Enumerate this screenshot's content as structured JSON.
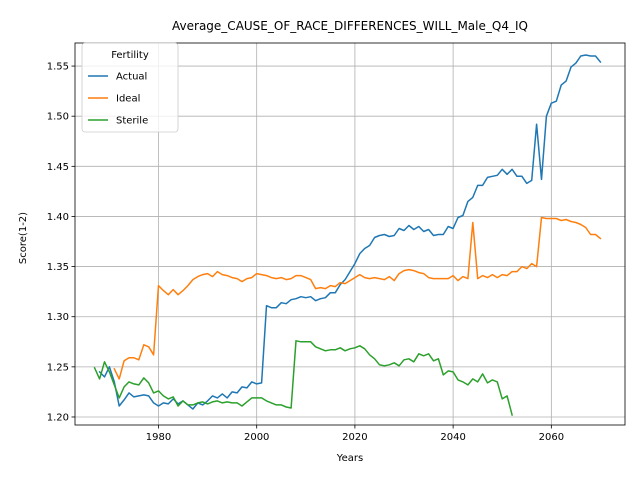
{
  "chart_data": {
    "type": "line",
    "title": "Average_CAUSE_OF_RACE_DIFFERENCES_WILL_Male_Q4_IQ",
    "xlabel": "Years",
    "ylabel": "Score(1-2)",
    "xlim": [
      1963,
      2075
    ],
    "ylim": [
      1.192,
      1.573
    ],
    "xticks": [
      1980,
      2000,
      2020,
      2040,
      2060
    ],
    "yticks": [
      1.2,
      1.25,
      1.3,
      1.35,
      1.4,
      1.45,
      1.5,
      1.55
    ],
    "grid": true,
    "legend": {
      "title": "Fertility",
      "placement": "upper-left"
    },
    "series": [
      {
        "name": "Actual",
        "color": "#1f77b4",
        "x": [
          1968,
          1969,
          1970,
          1971,
          1972,
          1973,
          1974,
          1975,
          1976,
          1977,
          1978,
          1979,
          1980,
          1981,
          1982,
          1983,
          1984,
          1985,
          1986,
          1987,
          1988,
          1989,
          1990,
          1991,
          1992,
          1993,
          1994,
          1995,
          1996,
          1997,
          1998,
          1999,
          2000,
          2001,
          2002,
          2003,
          2004,
          2005,
          2006,
          2007,
          2008,
          2009,
          2010,
          2011,
          2012,
          2013,
          2014,
          2015,
          2016,
          2017,
          2018,
          2019,
          2020,
          2021,
          2022,
          2023,
          2024,
          2025,
          2026,
          2027,
          2028,
          2029,
          2030,
          2031,
          2032,
          2033,
          2034,
          2035,
          2036,
          2037,
          2038,
          2039,
          2040,
          2041,
          2042,
          2043,
          2044,
          2045,
          2046,
          2047,
          2048,
          2049,
          2050,
          2051,
          2052,
          2053,
          2054,
          2055,
          2056,
          2057,
          2058,
          2059,
          2060,
          2061,
          2062,
          2063,
          2064,
          2065,
          2066,
          2067,
          2068,
          2069,
          2070
        ],
        "y": [
          1.245,
          1.24,
          1.25,
          1.235,
          1.211,
          1.217,
          1.224,
          1.22,
          1.221,
          1.222,
          1.221,
          1.214,
          1.211,
          1.214,
          1.213,
          1.218,
          1.213,
          1.216,
          1.212,
          1.208,
          1.214,
          1.212,
          1.216,
          1.221,
          1.219,
          1.223,
          1.219,
          1.225,
          1.224,
          1.23,
          1.229,
          1.235,
          1.233,
          1.234,
          1.311,
          1.309,
          1.309,
          1.314,
          1.313,
          1.317,
          1.318,
          1.32,
          1.319,
          1.32,
          1.316,
          1.318,
          1.319,
          1.324,
          1.324,
          1.332,
          1.337,
          1.345,
          1.353,
          1.363,
          1.368,
          1.371,
          1.379,
          1.381,
          1.382,
          1.38,
          1.381,
          1.388,
          1.386,
          1.391,
          1.387,
          1.39,
          1.385,
          1.387,
          1.381,
          1.382,
          1.382,
          1.39,
          1.388,
          1.399,
          1.401,
          1.415,
          1.419,
          1.431,
          1.431,
          1.439,
          1.44,
          1.441,
          1.447,
          1.442,
          1.447,
          1.44,
          1.44,
          1.433,
          1.436,
          1.492,
          1.437,
          1.5,
          1.513,
          1.515,
          1.531,
          1.535,
          1.549,
          1.553,
          1.56,
          1.561,
          1.56,
          1.56,
          1.554
        ]
      },
      {
        "name": "Ideal",
        "color": "#ff7f0e",
        "x": [
          1971,
          1972,
          1973,
          1974,
          1975,
          1976,
          1977,
          1978,
          1979,
          1980,
          1981,
          1982,
          1983,
          1984,
          1985,
          1986,
          1987,
          1988,
          1989,
          1990,
          1991,
          1992,
          1993,
          1994,
          1995,
          1996,
          1997,
          1998,
          1999,
          2000,
          2001,
          2002,
          2003,
          2004,
          2005,
          2006,
          2007,
          2008,
          2009,
          2010,
          2011,
          2012,
          2013,
          2014,
          2015,
          2016,
          2017,
          2018,
          2019,
          2020,
          2021,
          2022,
          2023,
          2024,
          2025,
          2026,
          2027,
          2028,
          2029,
          2030,
          2031,
          2032,
          2033,
          2034,
          2035,
          2036,
          2037,
          2038,
          2039,
          2040,
          2041,
          2042,
          2043,
          2044,
          2045,
          2046,
          2047,
          2048,
          2049,
          2050,
          2051,
          2052,
          2053,
          2054,
          2055,
          2056,
          2057,
          2058,
          2059,
          2060,
          2061,
          2062,
          2063,
          2064,
          2065,
          2066,
          2067,
          2068,
          2069,
          2070
        ],
        "y": [
          1.248,
          1.238,
          1.256,
          1.259,
          1.259,
          1.257,
          1.272,
          1.27,
          1.262,
          1.331,
          1.326,
          1.322,
          1.327,
          1.322,
          1.326,
          1.331,
          1.337,
          1.34,
          1.342,
          1.343,
          1.34,
          1.345,
          1.342,
          1.341,
          1.339,
          1.338,
          1.335,
          1.338,
          1.339,
          1.343,
          1.342,
          1.341,
          1.339,
          1.338,
          1.339,
          1.337,
          1.338,
          1.341,
          1.341,
          1.339,
          1.337,
          1.328,
          1.329,
          1.328,
          1.331,
          1.33,
          1.334,
          1.333,
          1.336,
          1.339,
          1.342,
          1.339,
          1.338,
          1.339,
          1.338,
          1.337,
          1.34,
          1.336,
          1.343,
          1.346,
          1.347,
          1.346,
          1.344,
          1.343,
          1.339,
          1.338,
          1.338,
          1.338,
          1.338,
          1.341,
          1.336,
          1.34,
          1.338,
          1.394,
          1.338,
          1.341,
          1.339,
          1.342,
          1.339,
          1.342,
          1.341,
          1.345,
          1.345,
          1.35,
          1.348,
          1.353,
          1.35,
          1.399,
          1.398,
          1.398,
          1.398,
          1.396,
          1.397,
          1.395,
          1.394,
          1.392,
          1.389,
          1.382,
          1.382,
          1.378
        ]
      },
      {
        "name": "Sterile",
        "color": "#2ca02c",
        "x": [
          1967,
          1968,
          1969,
          1970,
          1971,
          1972,
          1973,
          1974,
          1975,
          1976,
          1977,
          1978,
          1979,
          1980,
          1981,
          1982,
          1983,
          1984,
          1985,
          1986,
          1987,
          1988,
          1989,
          1990,
          1991,
          1992,
          1993,
          1994,
          1995,
          1996,
          1997,
          1998,
          1999,
          2000,
          2001,
          2002,
          2003,
          2004,
          2005,
          2006,
          2007,
          2008,
          2009,
          2010,
          2011,
          2012,
          2013,
          2014,
          2015,
          2016,
          2017,
          2018,
          2019,
          2020,
          2021,
          2022,
          2023,
          2024,
          2025,
          2026,
          2027,
          2028,
          2029,
          2030,
          2031,
          2032,
          2033,
          2034,
          2035,
          2036,
          2037,
          2038,
          2039,
          2040,
          2041,
          2042,
          2043,
          2044,
          2045,
          2046,
          2047,
          2048,
          2049,
          2050,
          2051,
          2052
        ],
        "y": [
          1.249,
          1.238,
          1.255,
          1.245,
          1.232,
          1.219,
          1.23,
          1.235,
          1.233,
          1.232,
          1.239,
          1.234,
          1.224,
          1.226,
          1.221,
          1.218,
          1.22,
          1.211,
          1.216,
          1.212,
          1.212,
          1.214,
          1.215,
          1.213,
          1.215,
          1.216,
          1.214,
          1.215,
          1.214,
          1.214,
          1.211,
          1.215,
          1.219,
          1.219,
          1.219,
          1.216,
          1.214,
          1.212,
          1.212,
          1.21,
          1.209,
          1.276,
          1.275,
          1.275,
          1.275,
          1.27,
          1.268,
          1.266,
          1.267,
          1.267,
          1.269,
          1.266,
          1.268,
          1.269,
          1.271,
          1.268,
          1.262,
          1.258,
          1.252,
          1.251,
          1.252,
          1.254,
          1.251,
          1.257,
          1.258,
          1.255,
          1.263,
          1.261,
          1.263,
          1.256,
          1.258,
          1.242,
          1.246,
          1.245,
          1.237,
          1.235,
          1.232,
          1.238,
          1.235,
          1.243,
          1.234,
          1.237,
          1.235,
          1.218,
          1.221,
          1.202
        ]
      }
    ]
  }
}
